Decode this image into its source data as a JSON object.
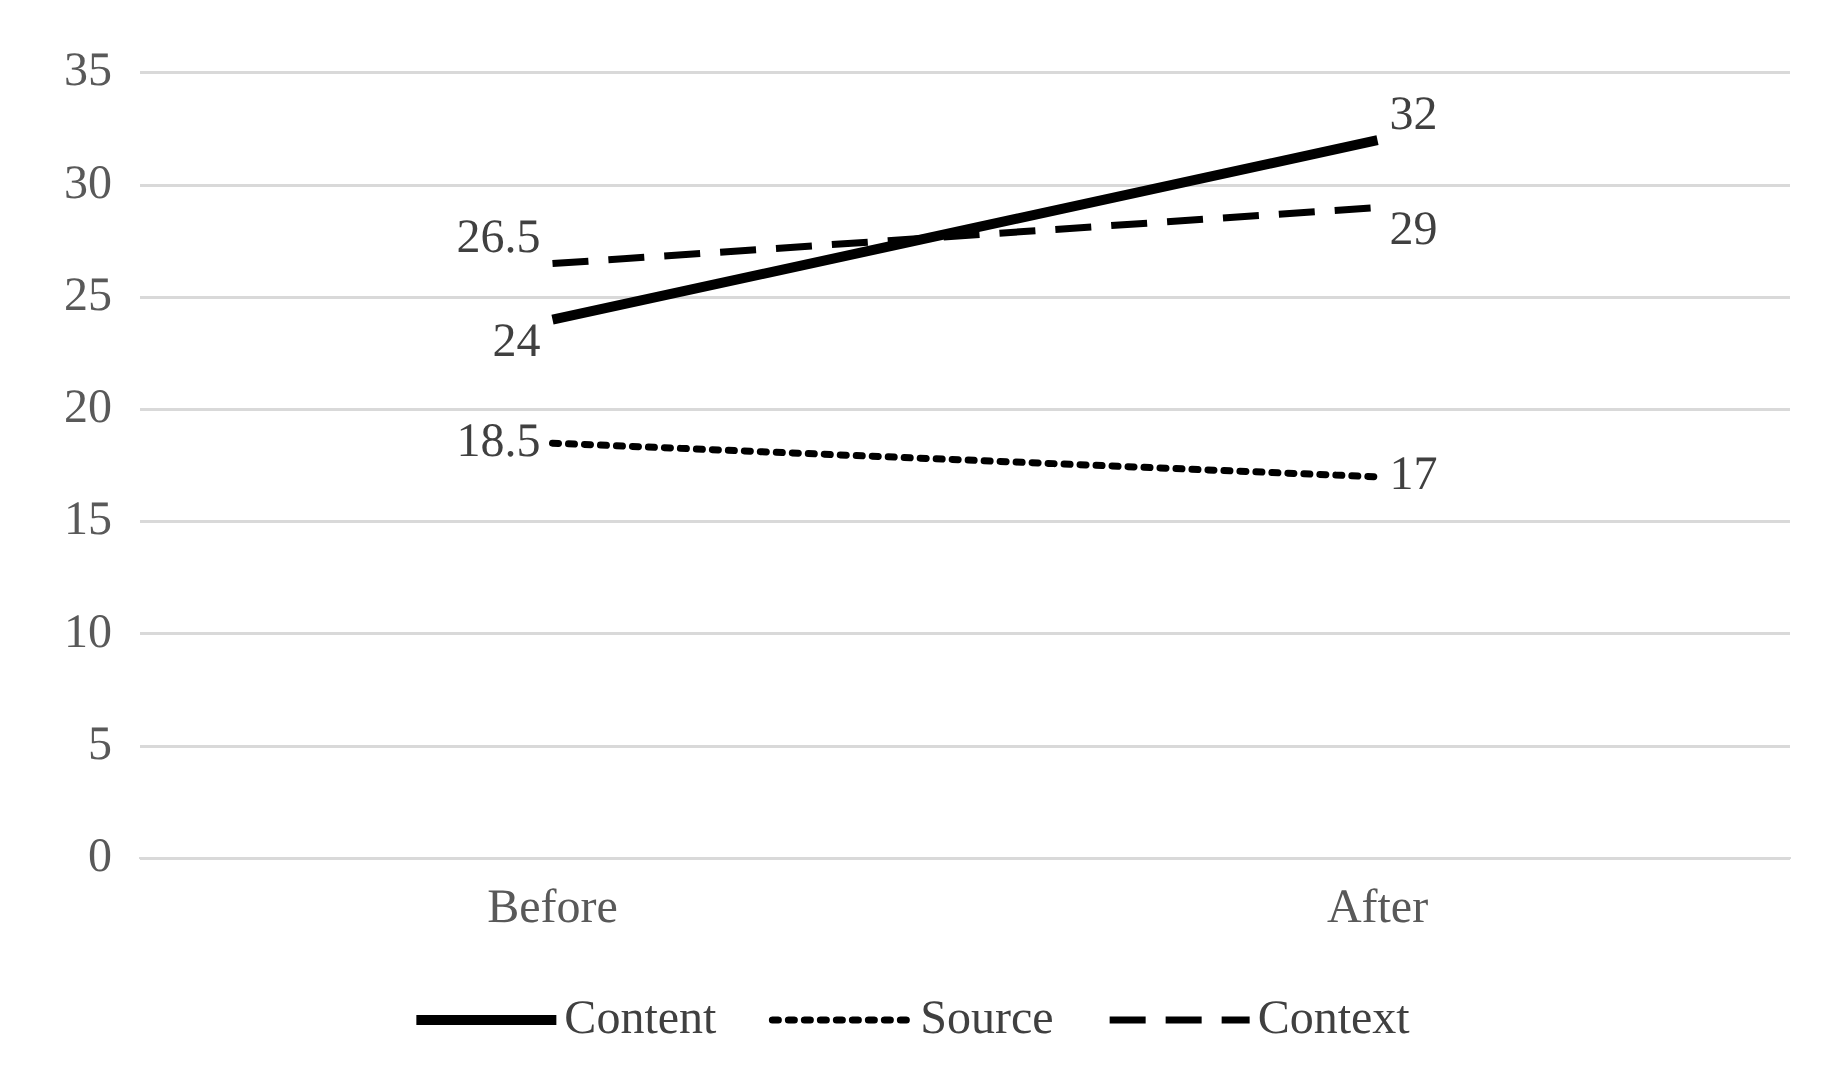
{
  "chart_data": {
    "type": "line",
    "categories": [
      "Before",
      "After"
    ],
    "series": [
      {
        "name": "Content",
        "color": "#000000",
        "values": [
          24,
          32
        ],
        "line_style": "solid"
      },
      {
        "name": "Source",
        "color": "#000000",
        "values": [
          18.5,
          17
        ],
        "line_style": "dotted"
      },
      {
        "name": "Context",
        "color": "#000000",
        "values": [
          26.5,
          29
        ],
        "line_style": "dashed"
      }
    ],
    "ylim": [
      0,
      35
    ],
    "yticks": [
      0,
      5,
      10,
      15,
      20,
      25,
      30,
      35
    ],
    "grid": "y",
    "legend": "bottom",
    "marker": "none",
    "data_labels": true
  }
}
